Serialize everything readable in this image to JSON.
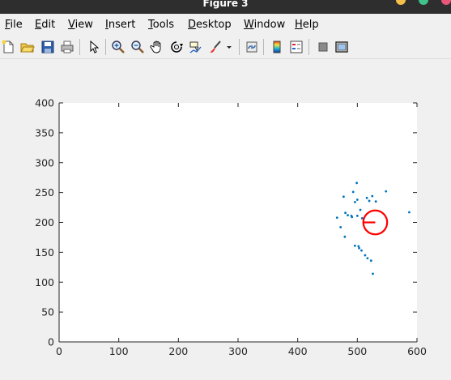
{
  "window": {
    "title": "Figure 3",
    "controls": [
      {
        "name": "minimize",
        "color": "#f5c04a"
      },
      {
        "name": "maximize",
        "color": "#3fc38a"
      },
      {
        "name": "close",
        "color": "#e8577a"
      }
    ]
  },
  "menu": {
    "items": [
      {
        "key": "file",
        "text": "File",
        "mnemonic": "F"
      },
      {
        "key": "edit",
        "text": "Edit",
        "mnemonic": "E"
      },
      {
        "key": "view",
        "text": "View",
        "mnemonic": "V"
      },
      {
        "key": "insert",
        "text": "Insert",
        "mnemonic": "I"
      },
      {
        "key": "tools",
        "text": "Tools",
        "mnemonic": "T"
      },
      {
        "key": "desktop",
        "text": "Desktop",
        "mnemonic": "D"
      },
      {
        "key": "window",
        "text": "Window",
        "mnemonic": "W"
      },
      {
        "key": "help",
        "text": "Help",
        "mnemonic": "H"
      }
    ]
  },
  "toolbar": {
    "buttons": [
      "new-figure-icon",
      "open-file-icon",
      "save-icon",
      "print-icon",
      "pointer-arrow-icon",
      "zoom-in-icon",
      "zoom-out-icon",
      "pan-hand-icon",
      "rotate-3d-icon",
      "data-cursor-icon",
      "brush-icon",
      "dropdown-arrow-icon",
      "link-plot-icon",
      "insert-colorbar-icon",
      "insert-legend-icon",
      "hide-plot-tools-icon",
      "show-plot-tools-icon"
    ]
  },
  "chart_data": {
    "type": "scatter",
    "title": "",
    "xlabel": "",
    "ylabel": "",
    "xlim": [
      0,
      600
    ],
    "ylim": [
      0,
      400
    ],
    "xticks": [
      0,
      100,
      200,
      300,
      400,
      500,
      600
    ],
    "yticks": [
      0,
      50,
      100,
      150,
      200,
      250,
      300,
      350,
      400
    ],
    "grid": false,
    "series": [
      {
        "marker": "dot",
        "color": "#0072bd",
        "points": [
          [
            499,
            266
          ],
          [
            548,
            252
          ],
          [
            493,
            251
          ],
          [
            525,
            244
          ],
          [
            477,
            243
          ],
          [
            516,
            241
          ],
          [
            500,
            238
          ],
          [
            520,
            236
          ],
          [
            531,
            235
          ],
          [
            496,
            234
          ],
          [
            505,
            221
          ],
          [
            480,
            216
          ],
          [
            587,
            217
          ],
          [
            484,
            212
          ],
          [
            490,
            211
          ],
          [
            500,
            211
          ],
          [
            466,
            208
          ],
          [
            491,
            209
          ],
          [
            508,
            207
          ],
          [
            472,
            192
          ],
          [
            479,
            176
          ],
          [
            496,
            161
          ],
          [
            502,
            160
          ],
          [
            503,
            157
          ],
          [
            507,
            153
          ],
          [
            513,
            145
          ],
          [
            517,
            140
          ],
          [
            523,
            136
          ],
          [
            526,
            114
          ]
        ]
      }
    ],
    "annotations": [
      {
        "shape": "circle",
        "center": [
          530,
          200
        ],
        "radius": 20,
        "color": "#ff0000"
      },
      {
        "shape": "line",
        "from": [
          510,
          200
        ],
        "to": [
          530,
          200
        ],
        "color": "#ff0000"
      }
    ]
  }
}
